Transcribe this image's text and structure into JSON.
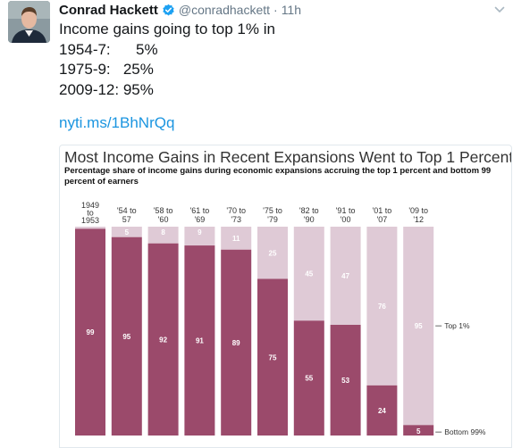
{
  "tweet": {
    "display_name": "Conrad Hackett",
    "handle": "@conradhackett",
    "separator": "·",
    "time": "11h",
    "text_lines": [
      "Income gains going to top 1% in",
      "1954-7:      5%",
      "1975-9:   25%",
      "2009-12: 95%"
    ],
    "link": "nyti.ms/1BhNrQq"
  },
  "icons": {
    "verified": "verified-badge-icon",
    "caret": "chevron-down-icon"
  },
  "colors": {
    "bottom99": "#9b4a6b",
    "top1": "#dfcad6",
    "link": "#1b95e0",
    "verified": "#1da1f2"
  },
  "chart_data": {
    "type": "bar",
    "stacked": true,
    "title": "Most Income Gains in Recent Expansions Went to Top 1 Percent",
    "subtitle": "Percentage share of income gains during economic expansions accruing the top 1 percent and bottom 99 percent of earners",
    "categories": [
      [
        "1949",
        "to",
        "1953"
      ],
      [
        "'54 to",
        "57"
      ],
      [
        "'58 to",
        "'60"
      ],
      [
        "'61 to",
        "'69"
      ],
      [
        "'70 to",
        "'73"
      ],
      [
        "'75 to",
        "'79"
      ],
      [
        "'82 to",
        "'90"
      ],
      [
        "'91 to",
        "'00"
      ],
      [
        "'01 to",
        "'07"
      ],
      [
        "'09 to",
        "'12"
      ]
    ],
    "series": [
      {
        "name": "Bottom 99%",
        "values": [
          99,
          95,
          92,
          91,
          89,
          75,
          55,
          53,
          24,
          5
        ]
      },
      {
        "name": "Top 1%",
        "values": [
          null,
          5,
          8,
          9,
          11,
          25,
          45,
          47,
          76,
          95
        ]
      }
    ],
    "ylim": [
      0,
      100
    ],
    "grid": false,
    "legend": "right"
  }
}
